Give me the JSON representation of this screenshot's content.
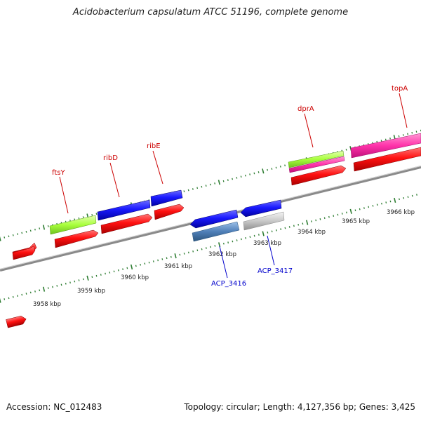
{
  "title": "Acidobacterium capsulatum ATCC 51196, complete genome",
  "footer": {
    "accession": "Accession: NC_012483",
    "summary": "Topology: circular; Length: 4,127,356 bp; Genes: 3,425"
  },
  "colors": {
    "background": "#ffffff",
    "backbone": "#888888",
    "tick": "#2e7d32",
    "label_forward": "#cc0000",
    "label_reverse": "#0000cc",
    "feature_red": "#ff1111",
    "feature_blue": "#1a1aff",
    "feature_green": "#a8ff3c",
    "feature_pink": "#ff33aa",
    "feature_steel": "#4f7fb8",
    "feature_gray": "#c8c8c8"
  },
  "axis": {
    "unit": "kbp",
    "labels": [
      "3958 kbp",
      "3959 kbp",
      "3960 kbp",
      "3961 kbp",
      "3962 kbp",
      "3963 kbp",
      "3964 kbp",
      "3965 kbp",
      "3966 kbp"
    ]
  },
  "gene_labels": [
    {
      "name": "ftsY",
      "strand": "forward"
    },
    {
      "name": "ribD",
      "strand": "forward"
    },
    {
      "name": "ribE",
      "strand": "forward"
    },
    {
      "name": "dprA",
      "strand": "forward"
    },
    {
      "name": "topA",
      "strand": "forward"
    },
    {
      "name": "ACP_3416",
      "strand": "reverse"
    },
    {
      "name": "ACP_3417",
      "strand": "reverse"
    }
  ],
  "features": [
    {
      "name": "cds-forward-1",
      "color": "feature_red"
    },
    {
      "name": "cds-forward-2",
      "color": "feature_red"
    },
    {
      "name": "cds-forward-3",
      "color": "feature_red"
    },
    {
      "name": "cds-forward-4",
      "color": "feature_red"
    },
    {
      "name": "cds-forward-5",
      "color": "feature_red"
    },
    {
      "name": "cds-forward-6",
      "color": "feature_red"
    },
    {
      "name": "cds-forward-7",
      "color": "feature_red"
    },
    {
      "name": "ftsY-gene",
      "color": "feature_green"
    },
    {
      "name": "ribD-gene",
      "color": "feature_blue"
    },
    {
      "name": "ribE-gene",
      "color": "feature_blue"
    },
    {
      "name": "dprA-gene",
      "color": "feature_green"
    },
    {
      "name": "dprA-pink",
      "color": "feature_pink"
    },
    {
      "name": "topA-gene",
      "color": "feature_pink"
    },
    {
      "name": "ACP_3416-blue",
      "color": "feature_blue"
    },
    {
      "name": "ACP_3416-steel",
      "color": "feature_steel"
    },
    {
      "name": "ACP_3417-blue",
      "color": "feature_blue"
    },
    {
      "name": "ACP_3417-gray",
      "color": "feature_gray"
    }
  ]
}
